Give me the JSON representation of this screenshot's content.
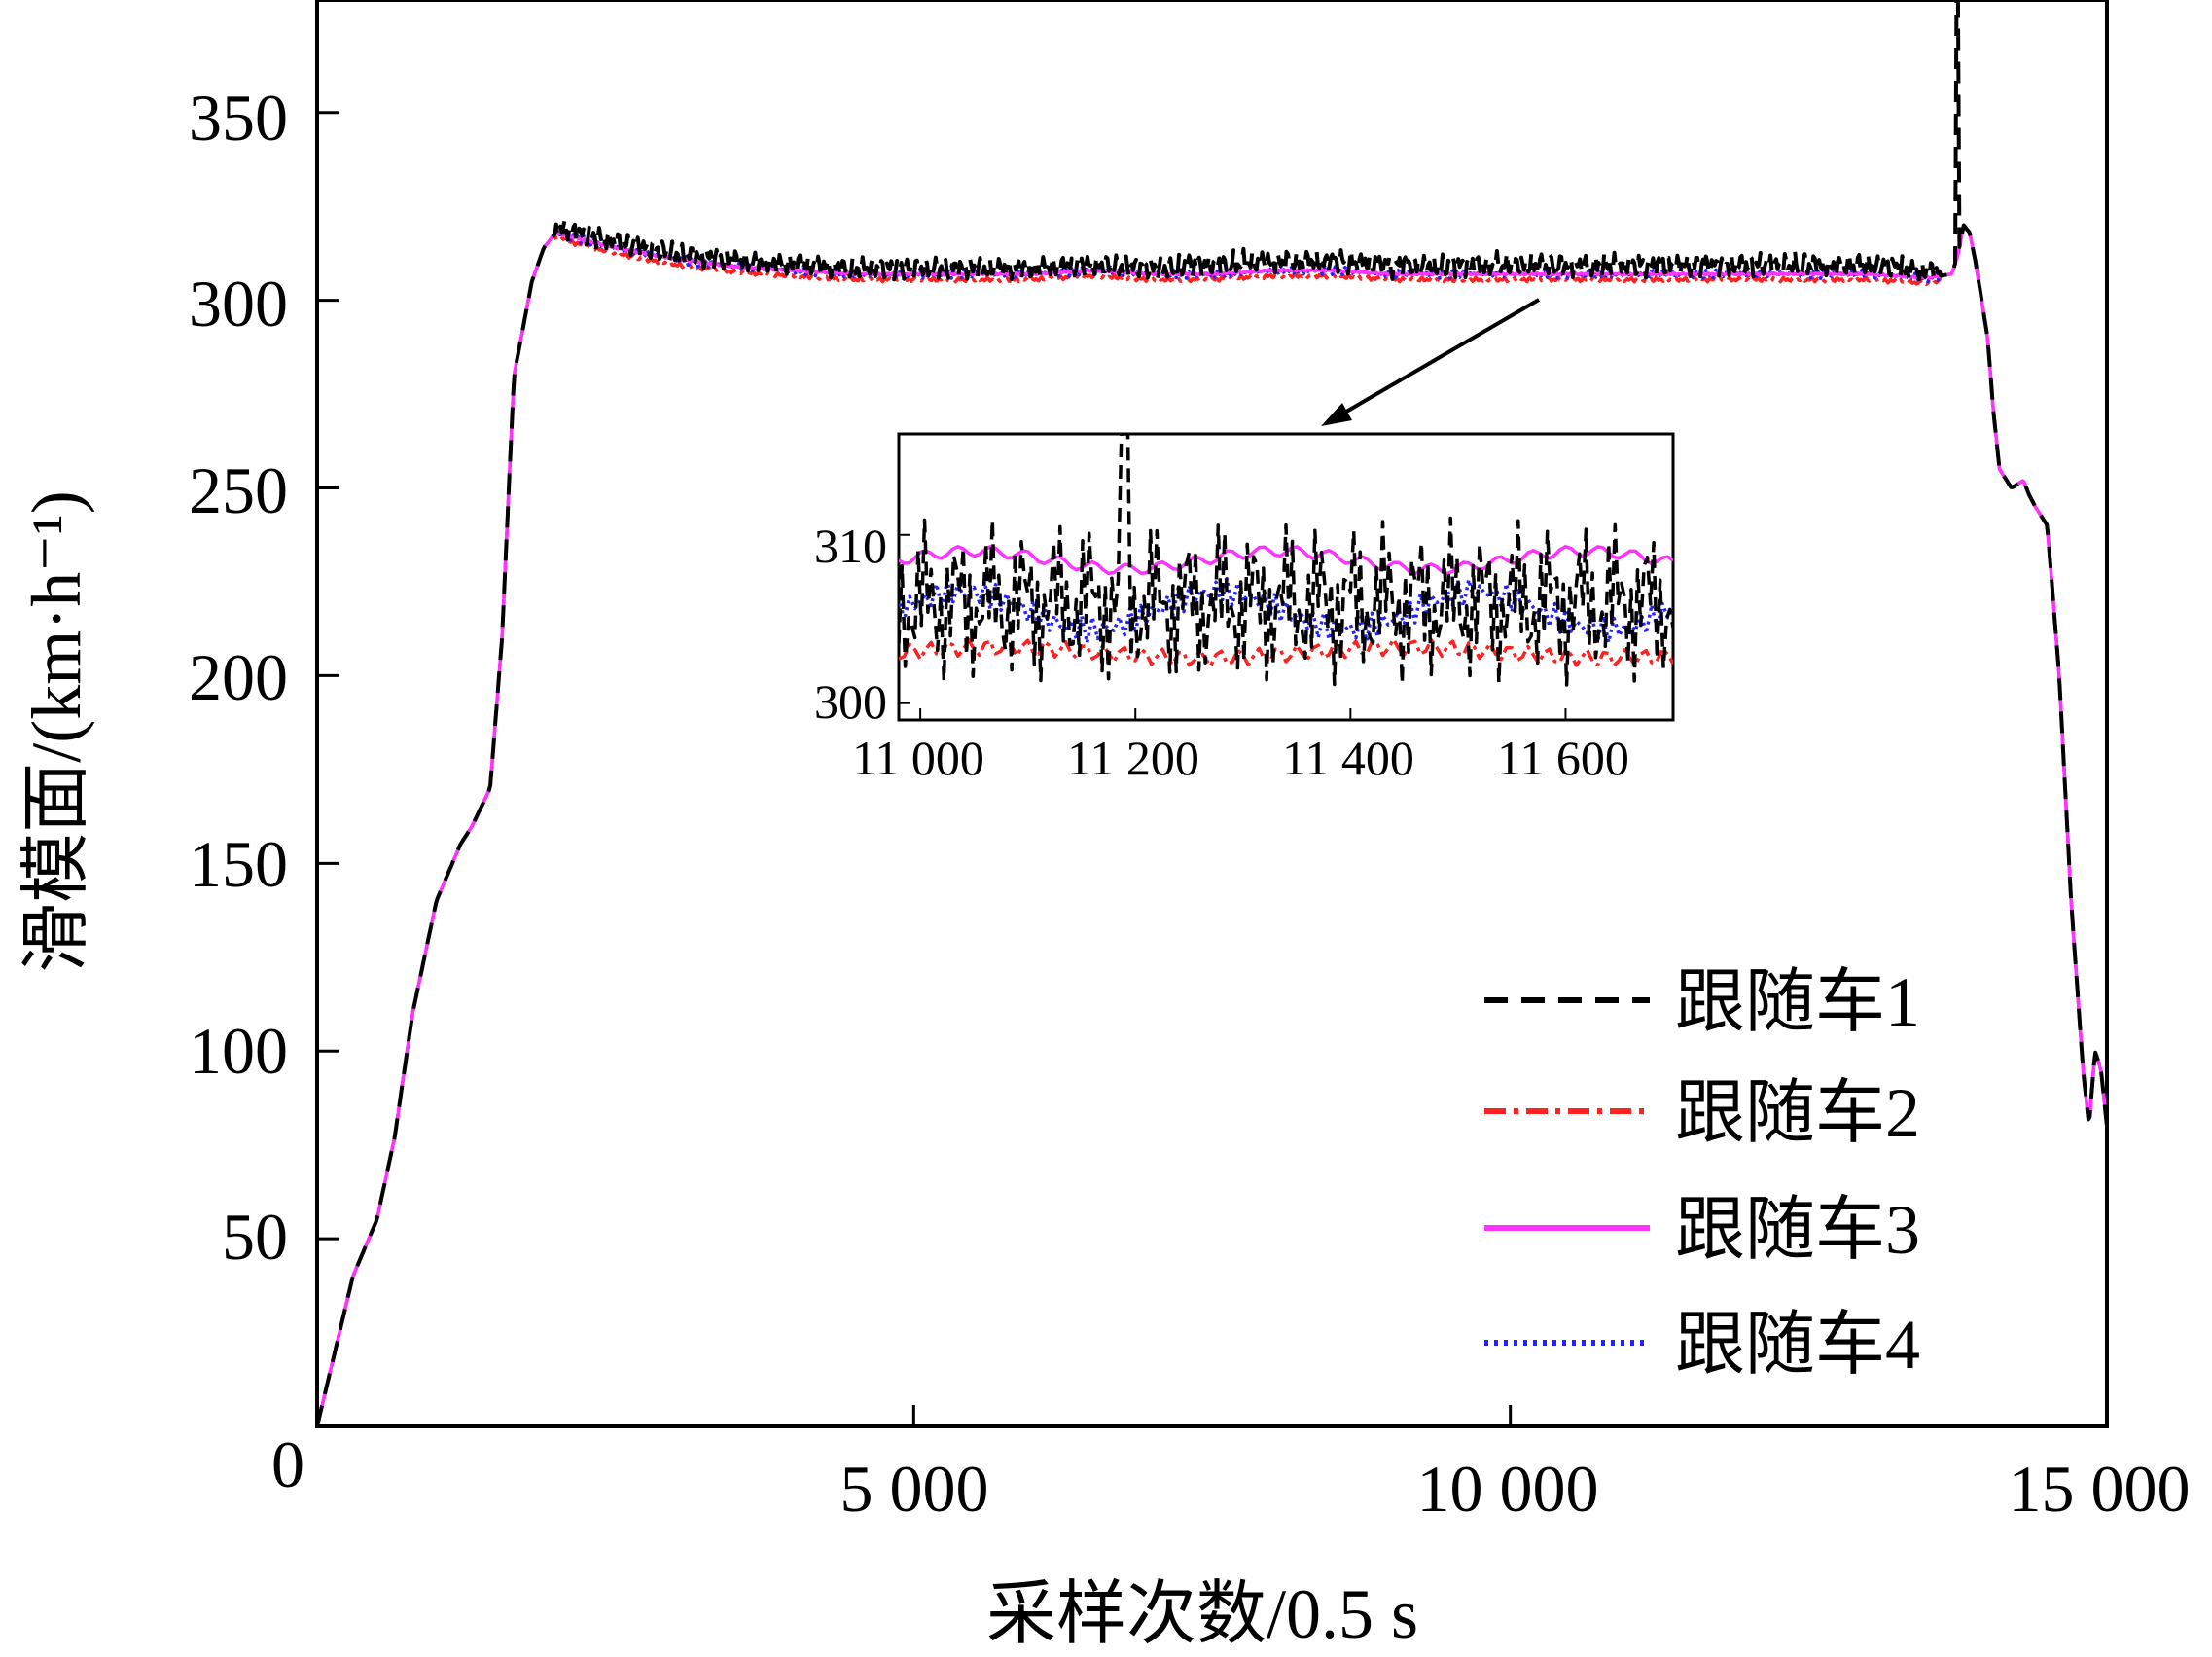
{
  "chart_data": {
    "type": "line",
    "xlabel": "采样次数/0.5 s",
    "ylabel": "滑模面/(km·h⁻¹)",
    "xlim": [
      0,
      15000
    ],
    "ylim": [
      0,
      380
    ],
    "x_ticks": [
      {
        "value": 0,
        "label": "0"
      },
      {
        "value": 5000,
        "label": "5 000"
      },
      {
        "value": 10000,
        "label": "10 000"
      },
      {
        "value": 15000,
        "label": "15 000"
      }
    ],
    "y_ticks": [
      {
        "value": 50,
        "label": "50"
      },
      {
        "value": 100,
        "label": "100"
      },
      {
        "value": 150,
        "label": "150"
      },
      {
        "value": 200,
        "label": "200"
      },
      {
        "value": 250,
        "label": "250"
      },
      {
        "value": 300,
        "label": "300"
      },
      {
        "value": 350,
        "label": "350"
      }
    ],
    "legend_position": "bottom-right",
    "base_profile": {
      "x": [
        0,
        150,
        300,
        500,
        650,
        800,
        1000,
        1200,
        1300,
        1450,
        1550,
        1650,
        1800,
        1900,
        2000,
        2500,
        3000,
        3500,
        4000,
        4500,
        5000,
        5500,
        6000,
        6500,
        7000,
        7500,
        8000,
        8500,
        9000,
        9500,
        10000,
        10500,
        11000,
        11500,
        12000,
        12500,
        13000,
        13500,
        13700,
        13750,
        13800,
        13850,
        13900,
        14000,
        14050,
        14100,
        14200,
        14300,
        14350,
        14400,
        14500,
        14600,
        14700,
        14800,
        14850,
        14900,
        14950,
        15000
      ],
      "y": [
        0,
        20,
        40,
        55,
        77,
        110,
        140,
        155,
        160,
        170,
        210,
        280,
        305,
        314,
        318,
        314,
        311,
        309,
        308,
        307,
        307,
        307,
        307,
        308,
        307,
        307,
        308,
        308,
        307,
        307,
        307,
        307,
        307,
        307,
        307,
        307,
        307,
        306,
        307,
        312,
        320,
        318,
        310,
        290,
        270,
        255,
        250,
        252,
        248,
        245,
        240,
        200,
        140,
        95,
        80,
        100,
        95,
        80
      ]
    },
    "series": [
      {
        "name": "跟随车1",
        "color": "#000000",
        "dash": "dashed",
        "offset": 1.5,
        "noise_amplitude": 3,
        "spike_x": 13750,
        "spike_peak": 380
      },
      {
        "name": "跟随车2",
        "color": "#ff2020",
        "dash": "dashdot",
        "offset": -1.5,
        "noise_amplitude": 0.6
      },
      {
        "name": "跟随车3",
        "color": "#ff33ff",
        "dash": "solid",
        "offset": 0,
        "noise_amplitude": 0.3
      },
      {
        "name": "跟随车4",
        "color": "#2222ff",
        "dash": "dotted",
        "offset": 0,
        "noise_amplitude": 1.2
      }
    ],
    "inset": {
      "xlim": [
        10980,
        11700
      ],
      "ylim": [
        299,
        316
      ],
      "x_ticks": [
        {
          "value": 11000,
          "label": "11 000"
        },
        {
          "value": 11200,
          "label": "11 200"
        },
        {
          "value": 11400,
          "label": "11 400"
        },
        {
          "value": 11600,
          "label": "11 600"
        }
      ],
      "y_ticks": [
        {
          "value": 300,
          "label": "300"
        },
        {
          "value": 310,
          "label": "310"
        }
      ],
      "series": [
        {
          "name": "跟随车1",
          "center": 306,
          "amplitude": 5
        },
        {
          "name": "跟随车2",
          "center": 303,
          "amplitude": 0.8
        },
        {
          "name": "跟随车3",
          "center": 308.5,
          "amplitude": 0.9
        },
        {
          "name": "跟随车4",
          "center": 305.5,
          "amplitude": 1.6
        }
      ]
    }
  }
}
